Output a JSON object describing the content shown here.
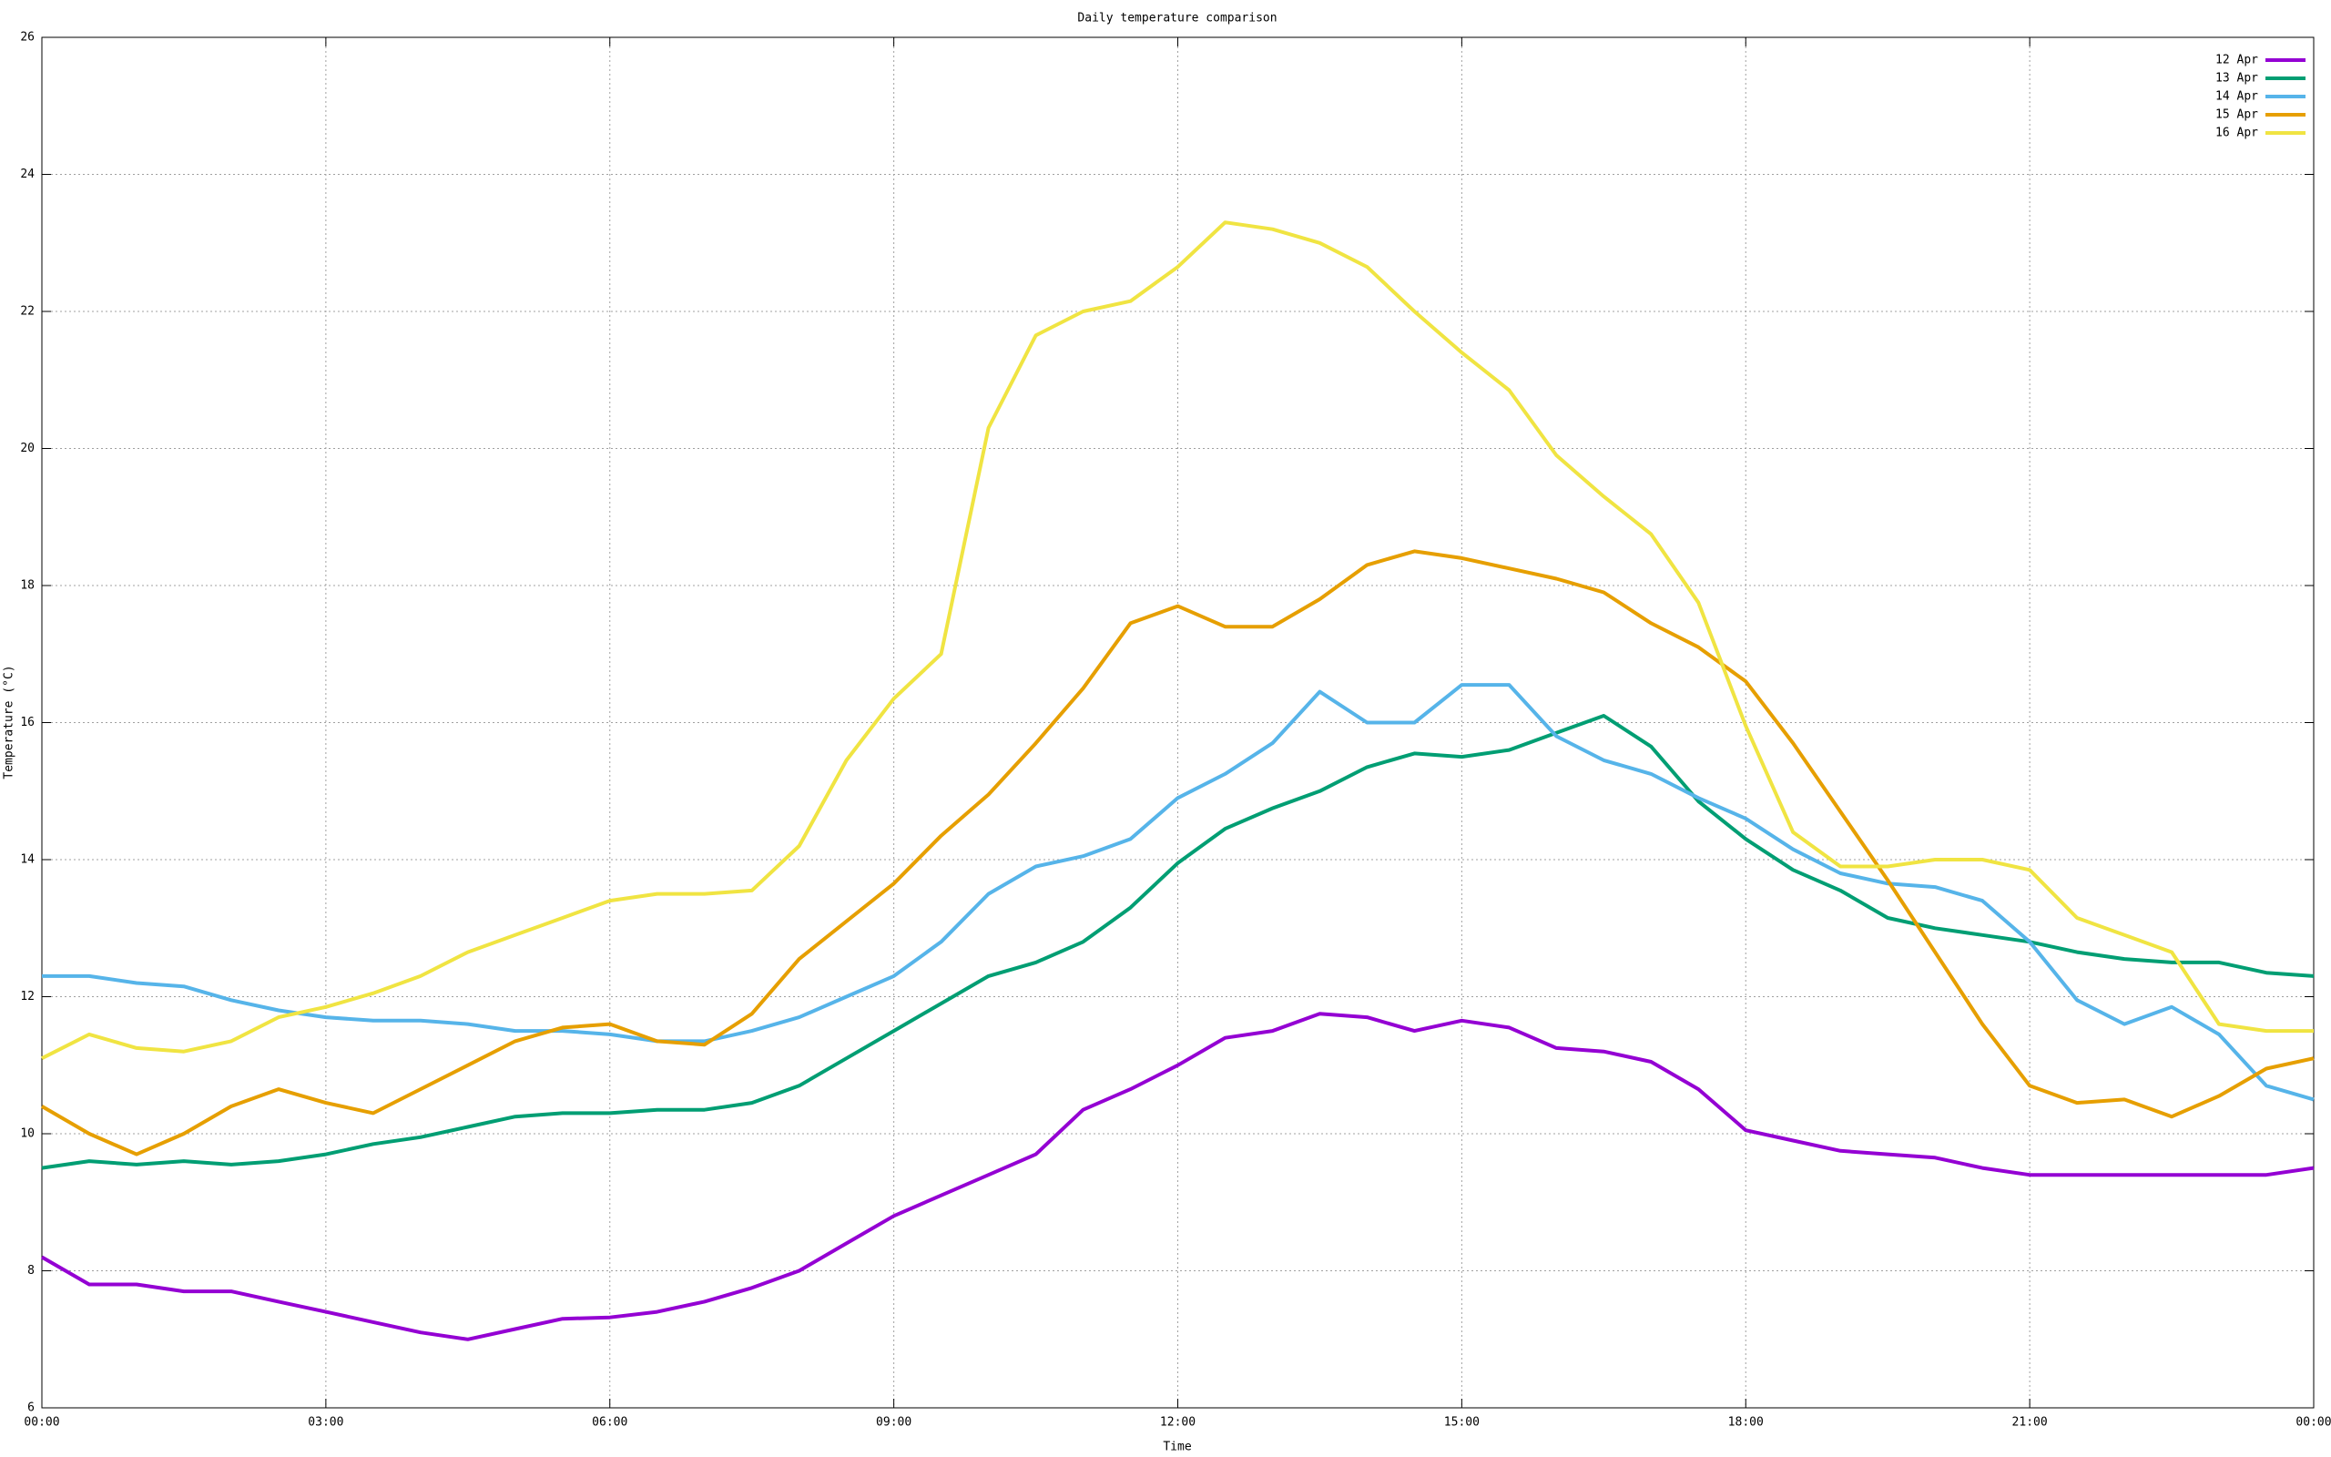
{
  "chart_data": {
    "type": "line",
    "title": "Daily temperature comparison",
    "xlabel": "Time",
    "ylabel": "Temperature (°C)",
    "x": [
      0,
      0.5,
      1,
      1.5,
      2,
      2.5,
      3,
      3.5,
      4,
      4.5,
      5,
      5.5,
      6,
      6.5,
      7,
      7.5,
      8,
      8.5,
      9,
      9.5,
      10,
      10.5,
      11,
      11.5,
      12,
      12.5,
      13,
      13.5,
      14,
      14.5,
      15,
      15.5,
      16,
      16.5,
      17,
      17.5,
      18,
      18.5,
      19,
      19.5,
      20,
      20.5,
      21,
      21.5,
      22,
      22.5,
      23,
      23.5,
      24
    ],
    "series": [
      {
        "name": "12 Apr",
        "color": "#9400d3",
        "values": [
          8.2,
          7.8,
          7.8,
          7.7,
          7.7,
          7.55,
          7.4,
          7.25,
          7.1,
          7.0,
          7.15,
          7.3,
          7.32,
          7.4,
          7.55,
          7.75,
          8.0,
          8.4,
          8.8,
          9.1,
          9.4,
          9.7,
          10.35,
          10.65,
          11.0,
          11.4,
          11.5,
          11.75,
          11.7,
          11.5,
          11.65,
          11.55,
          11.25,
          11.2,
          11.05,
          10.65,
          10.05,
          9.9,
          9.75,
          9.7,
          9.65,
          9.5,
          9.4,
          9.4,
          9.4,
          9.4,
          9.4,
          9.4,
          9.5
        ]
      },
      {
        "name": "13 Apr",
        "color": "#009e73",
        "values": [
          9.5,
          9.6,
          9.55,
          9.6,
          9.55,
          9.6,
          9.7,
          9.85,
          9.95,
          10.1,
          10.25,
          10.3,
          10.3,
          10.35,
          10.35,
          10.45,
          10.7,
          11.1,
          11.5,
          11.9,
          12.3,
          12.5,
          12.8,
          13.3,
          13.95,
          14.45,
          14.75,
          15.0,
          15.35,
          15.55,
          15.5,
          15.6,
          15.85,
          16.1,
          15.65,
          14.85,
          14.3,
          13.85,
          13.55,
          13.15,
          13.0,
          12.9,
          12.8,
          12.65,
          12.55,
          12.5,
          12.5,
          12.35,
          12.3
        ]
      },
      {
        "name": "14 Apr",
        "color": "#56b4e9",
        "values": [
          12.3,
          12.3,
          12.2,
          12.15,
          11.95,
          11.8,
          11.7,
          11.65,
          11.65,
          11.6,
          11.5,
          11.5,
          11.45,
          11.35,
          11.35,
          11.5,
          11.7,
          12.0,
          12.3,
          12.8,
          13.5,
          13.9,
          14.05,
          14.3,
          14.9,
          15.25,
          15.7,
          16.45,
          16.0,
          16.0,
          16.55,
          16.55,
          15.8,
          15.45,
          15.25,
          14.9,
          14.6,
          14.15,
          13.8,
          13.65,
          13.6,
          13.4,
          12.8,
          11.95,
          11.6,
          11.85,
          11.45,
          10.7,
          10.5
        ]
      },
      {
        "name": "15 Apr",
        "color": "#e69f00",
        "values": [
          10.4,
          10.0,
          9.7,
          10.0,
          10.4,
          10.65,
          10.45,
          10.3,
          10.65,
          11.0,
          11.35,
          11.55,
          11.6,
          11.35,
          11.3,
          11.75,
          12.55,
          13.1,
          13.65,
          14.35,
          14.95,
          15.7,
          16.5,
          17.45,
          17.7,
          17.4,
          17.4,
          17.8,
          18.3,
          18.5,
          18.4,
          18.25,
          18.1,
          17.9,
          17.45,
          17.1,
          16.6,
          15.7,
          14.7,
          13.7,
          12.65,
          11.6,
          10.7,
          10.45,
          10.5,
          10.25,
          10.55,
          10.95,
          11.1
        ]
      },
      {
        "name": "16 Apr",
        "color": "#f0e442",
        "values": [
          11.1,
          11.45,
          11.25,
          11.2,
          11.35,
          11.7,
          11.85,
          12.05,
          12.3,
          12.65,
          12.9,
          13.15,
          13.4,
          13.5,
          13.5,
          13.55,
          14.2,
          15.45,
          16.35,
          17.0,
          20.3,
          21.65,
          22.0,
          22.15,
          22.65,
          23.3,
          23.2,
          23.0,
          22.65,
          22.0,
          21.4,
          20.85,
          19.9,
          19.3,
          18.75,
          17.75,
          15.95,
          14.4,
          13.9,
          13.9,
          14.0,
          14.0,
          13.85,
          13.15,
          12.9,
          12.65,
          11.6,
          11.5,
          11.5
        ]
      }
    ],
    "xlim": [
      0,
      24
    ],
    "xticks": [
      {
        "value": 0,
        "label": "00:00"
      },
      {
        "value": 3,
        "label": "03:00"
      },
      {
        "value": 6,
        "label": "06:00"
      },
      {
        "value": 9,
        "label": "09:00"
      },
      {
        "value": 12,
        "label": "12:00"
      },
      {
        "value": 15,
        "label": "15:00"
      },
      {
        "value": 18,
        "label": "18:00"
      },
      {
        "value": 21,
        "label": "21:00"
      },
      {
        "value": 24,
        "label": "00:00"
      }
    ],
    "ylim": [
      6,
      26
    ],
    "yticks": [
      6,
      8,
      10,
      12,
      14,
      16,
      18,
      20,
      22,
      24,
      26
    ],
    "grid": true,
    "legend": "top-right"
  }
}
